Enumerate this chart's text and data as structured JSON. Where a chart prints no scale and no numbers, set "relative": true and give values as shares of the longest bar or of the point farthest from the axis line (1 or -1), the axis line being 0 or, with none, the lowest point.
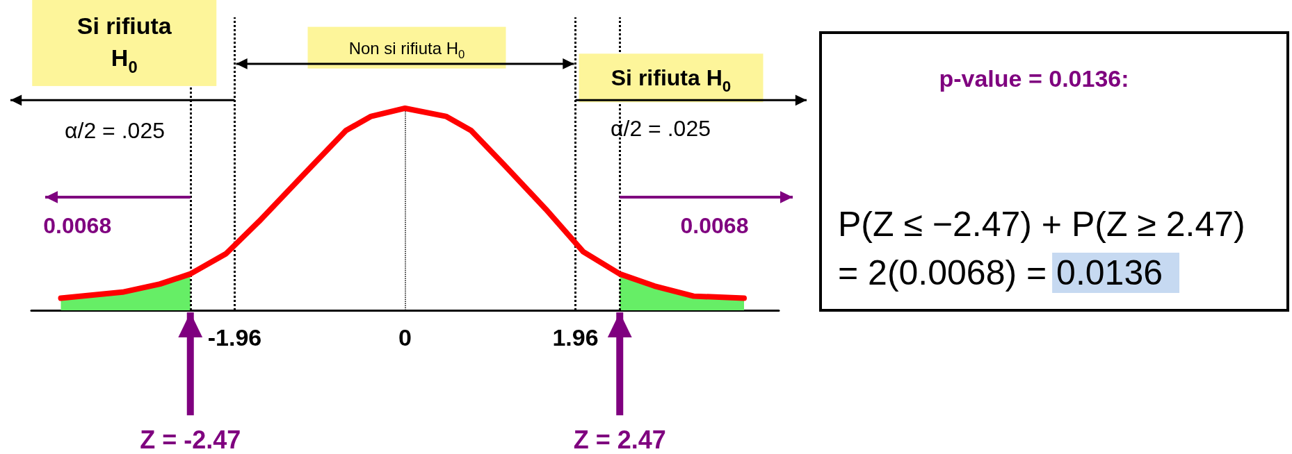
{
  "chart_data": {
    "type": "line",
    "relative": true,
    "xlim": [
      -4.3,
      4.3
    ],
    "xticks": [
      -1.96,
      0,
      1.96
    ],
    "grid": false,
    "series": [
      {
        "type": "area",
        "color": "#66ee66",
        "x": [
          -3.96,
          -3.25,
          -2.82,
          -2.47
        ],
        "values": [
          0.06,
          0.09,
          0.13,
          0.18
        ]
      },
      {
        "type": "area",
        "color": "#66ee66",
        "x": [
          2.47,
          2.87,
          3.32,
          3.9
        ],
        "values": [
          0.18,
          0.12,
          0.07,
          0.06
        ]
      },
      {
        "color": "#ff0000",
        "x": [
          -3.96,
          -3.25,
          -2.82,
          -2.47,
          -2.06,
          -1.68,
          -1.06,
          -0.68,
          -0.39,
          0,
          0.47,
          0.76,
          1.14,
          1.62,
          2.05,
          2.47,
          2.87,
          3.32,
          3.9
        ],
        "values": [
          0.06,
          0.09,
          0.13,
          0.18,
          0.28,
          0.44,
          0.72,
          0.89,
          0.96,
          1,
          0.96,
          0.89,
          0.72,
          0.5,
          0.29,
          0.18,
          0.12,
          0.07,
          0.06
        ]
      }
    ],
    "ref_lines": [
      {
        "axis": "x",
        "value": -1.96,
        "color": "#000000",
        "line_style": "dotted"
      },
      {
        "axis": "x",
        "value": 0,
        "color": "#000000",
        "line_style": "dotted"
      },
      {
        "axis": "x",
        "value": 1.96,
        "color": "#000000",
        "line_style": "dotted"
      },
      {
        "axis": "x",
        "value": -2.47,
        "color": "#000000",
        "line_style": "dotted"
      },
      {
        "axis": "x",
        "value": 2.47,
        "color": "#000000",
        "line_style": "dotted"
      }
    ],
    "annotations": [
      "Si rifiuta H$_{0}$",
      "Non si rifiuta H$_{0}$",
      "Si rifiuta H$_{0}$",
      "α/2 = .025",
      "α/2 = .025",
      "0.0068",
      "0.0068",
      "Z = -2.47",
      "Z = 2.47",
      "p-value = 0.0136:",
      "P(Z ≤ −2.47) + P(Z ≥ 2.47)",
      "= 2(0.0068) =",
      "0.0136"
    ]
  }
}
